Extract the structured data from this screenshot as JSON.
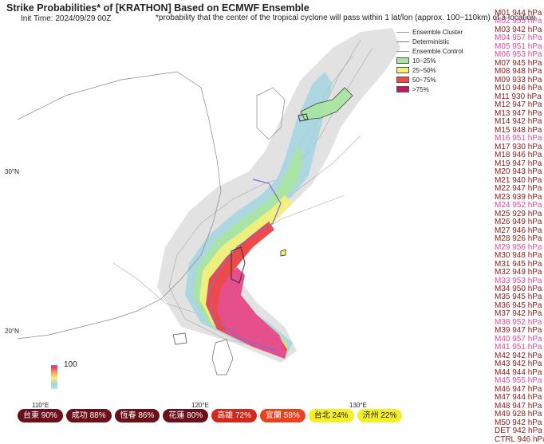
{
  "header": {
    "title": "Strike Probabilities* of [KRATHON] Based on ECMWF Ensemble",
    "init_time": "Init Time: 2024/09/29 00Z",
    "note": "*probability that the center of the tropical cyclone will pass within 1 lat/lon (approx. 100~110km) of a location"
  },
  "legend": {
    "items": [
      {
        "label": "Ensemble Cluster",
        "kind": "line",
        "color": "#aaaaaa"
      },
      {
        "label": "Deterministic",
        "kind": "marker",
        "color": "#7b6fd0"
      },
      {
        "label": "Ensemble Control",
        "kind": "marker",
        "color": "#999999"
      },
      {
        "label": "10~25%",
        "kind": "box",
        "color": "#a8e6a0"
      },
      {
        "label": "25~50%",
        "kind": "box",
        "color": "#f2ef7a"
      },
      {
        "label": "50~75%",
        "kind": "box",
        "color": "#ee4a4a"
      },
      {
        "label": ">75%",
        "kind": "box",
        "color": "#c2185b"
      }
    ]
  },
  "colorbar": {
    "max_label": "100"
  },
  "axes": {
    "lon_labels": [
      "110°E",
      "120°E",
      "130°E"
    ],
    "lat_labels": [
      "30°N",
      "20°N"
    ]
  },
  "members": [
    {
      "label": "M01 944 hPa",
      "color": "#8b1a1a"
    },
    {
      "label": "M02 955 hPa",
      "color": "#e0489c"
    },
    {
      "label": "M03 942 hPa",
      "color": "#8b1a1a"
    },
    {
      "label": "M04 957 hPa",
      "color": "#e0489c"
    },
    {
      "label": "M05 951 hPa",
      "color": "#e0489c"
    },
    {
      "label": "M06 953 hPa",
      "color": "#e0489c"
    },
    {
      "label": "M07 945 hPa",
      "color": "#8b1a1a"
    },
    {
      "label": "M08 948 hPa",
      "color": "#8b1a1a"
    },
    {
      "label": "M09 933 hPa",
      "color": "#8b1a1a"
    },
    {
      "label": "M10 946 hPa",
      "color": "#8b1a1a"
    },
    {
      "label": "M11 930 hPa",
      "color": "#8b1a1a"
    },
    {
      "label": "M12 947 hPa",
      "color": "#8b1a1a"
    },
    {
      "label": "M13 947 hPa",
      "color": "#8b1a1a"
    },
    {
      "label": "M14 942 hPa",
      "color": "#8b1a1a"
    },
    {
      "label": "M15 948 hPa",
      "color": "#8b1a1a"
    },
    {
      "label": "M16 951 hPa",
      "color": "#e0489c"
    },
    {
      "label": "M17 930 hPa",
      "color": "#8b1a1a"
    },
    {
      "label": "M18 946 hPa",
      "color": "#8b1a1a"
    },
    {
      "label": "M19 947 hPa",
      "color": "#8b1a1a"
    },
    {
      "label": "M20 943 hPa",
      "color": "#8b1a1a"
    },
    {
      "label": "M21 940 hPa",
      "color": "#8b1a1a"
    },
    {
      "label": "M22 947 hPa",
      "color": "#8b1a1a"
    },
    {
      "label": "M23 939 hPa",
      "color": "#8b1a1a"
    },
    {
      "label": "M24 952 hPa",
      "color": "#e0489c"
    },
    {
      "label": "M25 929 hPa",
      "color": "#8b1a1a"
    },
    {
      "label": "M26 949 hPa",
      "color": "#8b1a1a"
    },
    {
      "label": "M27 946 hPa",
      "color": "#8b1a1a"
    },
    {
      "label": "M28 926 hPa",
      "color": "#8b1a1a"
    },
    {
      "label": "M29 956 hPa",
      "color": "#e0489c"
    },
    {
      "label": "M30 948 hPa",
      "color": "#8b1a1a"
    },
    {
      "label": "M31 945 hPa",
      "color": "#8b1a1a"
    },
    {
      "label": "M32 949 hPa",
      "color": "#8b1a1a"
    },
    {
      "label": "M33 953 hPa",
      "color": "#e0489c"
    },
    {
      "label": "M34 950 hPa",
      "color": "#8b1a1a"
    },
    {
      "label": "M35 945 hPa",
      "color": "#8b1a1a"
    },
    {
      "label": "M36 945 hPa",
      "color": "#8b1a1a"
    },
    {
      "label": "M37 942 hPa",
      "color": "#8b1a1a"
    },
    {
      "label": "M38 952 hPa",
      "color": "#e0489c"
    },
    {
      "label": "M39 947 hPa",
      "color": "#8b1a1a"
    },
    {
      "label": "M40 957 hPa",
      "color": "#e0489c"
    },
    {
      "label": "M41 951 hPa",
      "color": "#e0489c"
    },
    {
      "label": "M42 942 hPa",
      "color": "#8b1a1a"
    },
    {
      "label": "M43 942 hPa",
      "color": "#8b1a1a"
    },
    {
      "label": "M44 944 hPa",
      "color": "#8b1a1a"
    },
    {
      "label": "M45 955 hPa",
      "color": "#e0489c"
    },
    {
      "label": "M46 947 hPa",
      "color": "#8b1a1a"
    },
    {
      "label": "M47 944 hPa",
      "color": "#8b1a1a"
    },
    {
      "label": "M48 947 hPa",
      "color": "#8b1a1a"
    },
    {
      "label": "M49 928 hPa",
      "color": "#8b1a1a"
    },
    {
      "label": "M50 942 hPa",
      "color": "#8b1a1a"
    },
    {
      "label": "DET 942 hPa",
      "color": "#8b1a1a"
    },
    {
      "label": "CTRL 946 hPa",
      "color": "#8b1a1a"
    }
  ],
  "cities": [
    {
      "label": "台東 90%",
      "bg": "#6b0f1a",
      "fg": "#ffffff"
    },
    {
      "label": "成功 88%",
      "bg": "#6b0f1a",
      "fg": "#ffffff"
    },
    {
      "label": "恆春 86%",
      "bg": "#6b0f1a",
      "fg": "#ffffff"
    },
    {
      "label": "花蓮 80%",
      "bg": "#6b0f1a",
      "fg": "#ffffff"
    },
    {
      "label": "高雄 72%",
      "bg": "#d5281c",
      "fg": "#ffffff"
    },
    {
      "label": "宜蘭 58%",
      "bg": "#e8421f",
      "fg": "#ffffff"
    },
    {
      "label": "台北 24%",
      "bg": "#f4ef2a",
      "fg": "#222222"
    },
    {
      "label": "济州 22%",
      "bg": "#f4ef2a",
      "fg": "#222222"
    }
  ]
}
